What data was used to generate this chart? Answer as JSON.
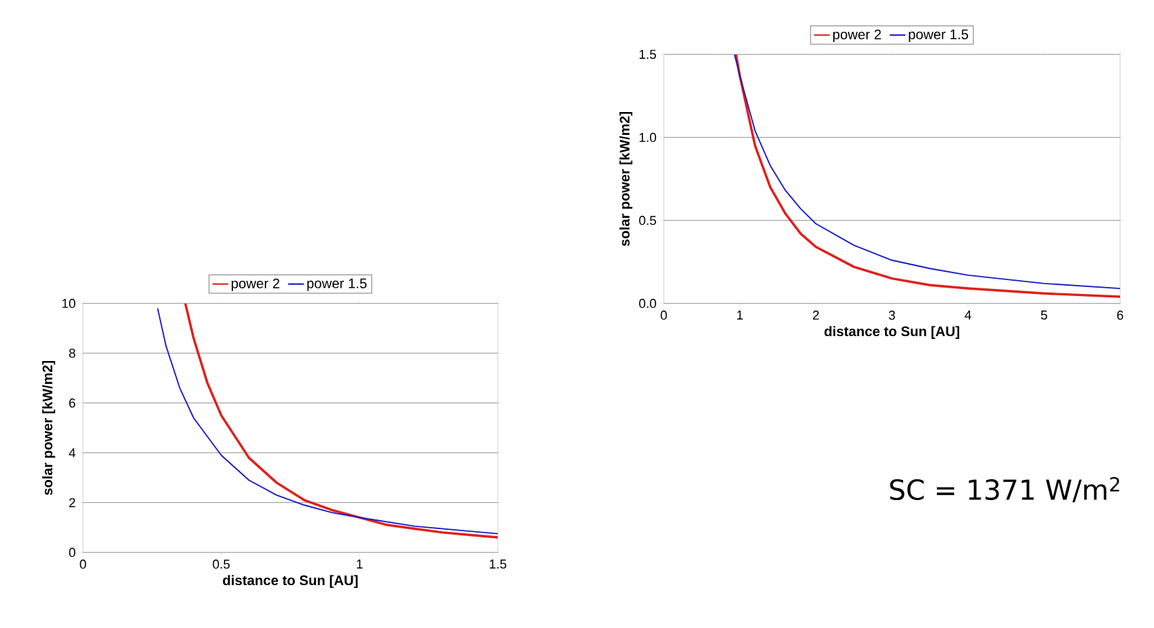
{
  "chart_data": [
    {
      "type": "line",
      "xlabel": "distance to Sun [AU]",
      "ylabel": "solar power [kW/m2]",
      "xlim": [
        0,
        1.5
      ],
      "ylim": [
        0,
        10
      ],
      "xticks": [
        0,
        0.5,
        1,
        1.5
      ],
      "yticks": [
        0,
        2,
        4,
        6,
        8,
        10
      ],
      "grid": "y",
      "legend": "top",
      "marker": "none",
      "series": [
        {
          "name": "power 2",
          "color": "#e0201b",
          "x": [
            0.37,
            0.4,
            0.45,
            0.5,
            0.6,
            0.7,
            0.8,
            0.9,
            1.0,
            1.1,
            1.2,
            1.3,
            1.4,
            1.5
          ],
          "values": [
            10,
            8.6,
            6.8,
            5.5,
            3.8,
            2.8,
            2.1,
            1.7,
            1.4,
            1.1,
            0.95,
            0.8,
            0.7,
            0.6
          ]
        },
        {
          "name": "power 1.5",
          "color": "#1a1acc",
          "x": [
            0.27,
            0.3,
            0.35,
            0.4,
            0.5,
            0.6,
            0.7,
            0.8,
            0.9,
            1.0,
            1.2,
            1.4,
            1.5
          ],
          "values": [
            9.8,
            8.3,
            6.6,
            5.4,
            3.9,
            2.9,
            2.3,
            1.9,
            1.6,
            1.4,
            1.05,
            0.85,
            0.75
          ]
        }
      ]
    },
    {
      "type": "line",
      "xlabel": "distance to Sun [AU]",
      "ylabel": "solar power [kW/m2]",
      "xlim": [
        0,
        6
      ],
      "ylim": [
        0,
        1.5
      ],
      "xticks": [
        0,
        1,
        2,
        3,
        4,
        5,
        6
      ],
      "yticks": [
        {
          "value": 0,
          "label": "0.0"
        },
        {
          "value": 0.5,
          "label": "0.5"
        },
        {
          "value": 1,
          "label": "1.0"
        },
        {
          "value": 1.5,
          "label": "1.5"
        }
      ],
      "grid": "y",
      "legend": "top",
      "marker": "none",
      "annotations": [
        "SC = 1371 W/m$^{2}$"
      ],
      "series": [
        {
          "name": "power 2",
          "color": "#e0201b",
          "x": [
            0.95,
            1.0,
            1.2,
            1.4,
            1.6,
            1.8,
            2.0,
            2.5,
            3.0,
            3.5,
            4.0,
            5.0,
            6.0
          ],
          "values": [
            1.5,
            1.37,
            0.95,
            0.7,
            0.54,
            0.42,
            0.34,
            0.22,
            0.15,
            0.11,
            0.09,
            0.06,
            0.04
          ]
        },
        {
          "name": "power 1.5",
          "color": "#1a1acc",
          "x": [
            0.93,
            1.0,
            1.2,
            1.4,
            1.6,
            1.8,
            2.0,
            2.5,
            3.0,
            3.5,
            4.0,
            5.0,
            6.0
          ],
          "values": [
            1.5,
            1.37,
            1.04,
            0.83,
            0.68,
            0.57,
            0.48,
            0.35,
            0.26,
            0.21,
            0.17,
            0.12,
            0.09
          ]
        }
      ]
    }
  ]
}
